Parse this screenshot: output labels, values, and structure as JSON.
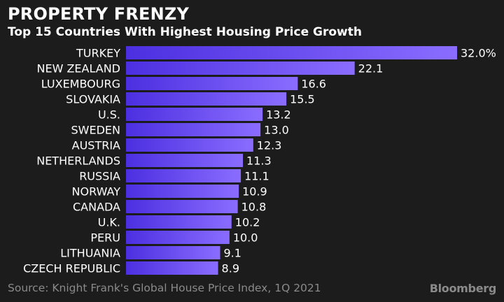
{
  "title": "PROPERTY FRENZY",
  "subtitle": "Top 15 Countries With Highest Housing Price Growth",
  "source": "Source: Knight Frank's Global House Price Index, 1Q 2021",
  "brand": "Bloomberg",
  "colors": {
    "background": "#1c1c1c",
    "bar_start": "#4c2fe0",
    "bar_end": "#8a6dff",
    "text": "#ffffff",
    "muted": "#8a8a8a"
  },
  "chart_data": {
    "type": "bar",
    "orientation": "horizontal",
    "categories": [
      "TURKEY",
      "NEW ZEALAND",
      "LUXEMBOURG",
      "SLOVAKIA",
      "U.S.",
      "SWEDEN",
      "AUSTRIA",
      "NETHERLANDS",
      "RUSSIA",
      "NORWAY",
      "CANADA",
      "U.K.",
      "PERU",
      "LITHUANIA",
      "CZECH REPUBLIC"
    ],
    "values": [
      32.0,
      22.1,
      16.6,
      15.5,
      13.2,
      13.0,
      12.3,
      11.3,
      11.1,
      10.9,
      10.8,
      10.2,
      10.0,
      9.1,
      8.9
    ],
    "value_labels": [
      "32.0%",
      "22.1",
      "16.6",
      "15.5",
      "13.2",
      "13.0",
      "12.3",
      "11.3",
      "11.1",
      "10.9",
      "10.8",
      "10.2",
      "10.0",
      "9.1",
      "8.9"
    ],
    "title": "PROPERTY FRENZY",
    "subtitle": "Top 15 Countries With Highest Housing Price Growth",
    "xlim": [
      0,
      32.0
    ],
    "grid": false
  }
}
